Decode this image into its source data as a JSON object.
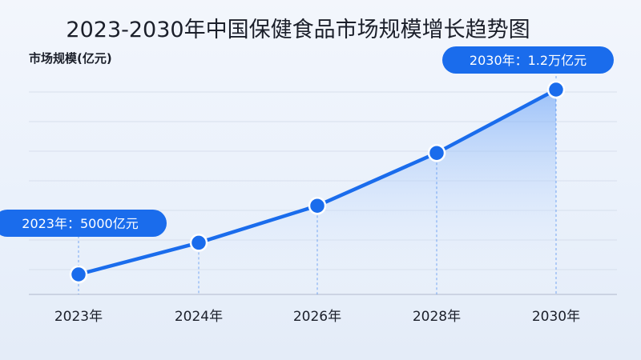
{
  "title": "2023-2030年中国保健食品市场规模增长趋势图",
  "chart_data": {
    "type": "area",
    "title": "2023-2030年中国保健食品市场规模增长趋势图",
    "ylabel": "市场规模(亿元)",
    "xlabel": "",
    "categories": [
      "2023年",
      "2024年",
      "2026年",
      "2028年",
      "2030年"
    ],
    "x": [
      2023,
      2024,
      2026,
      2028,
      2030
    ],
    "series": [
      {
        "values": [
          5000,
          6200,
          7600,
          9600,
          12000
        ]
      }
    ],
    "ylim": [
      4000,
      13000
    ],
    "grid": true,
    "annotations": [
      {
        "index": 0,
        "text": "2023年：5000亿元"
      },
      {
        "index": 4,
        "text": "2030年：1.2万亿元"
      }
    ]
  },
  "colors": {
    "line": "#1a6cec",
    "point": "#1a6cec",
    "point_stroke": "#ffffff",
    "area_top": "#6fa6f7",
    "callout_bg": "#1a6cec",
    "grid": "#d7dfec",
    "axis": "#c2cadb"
  }
}
